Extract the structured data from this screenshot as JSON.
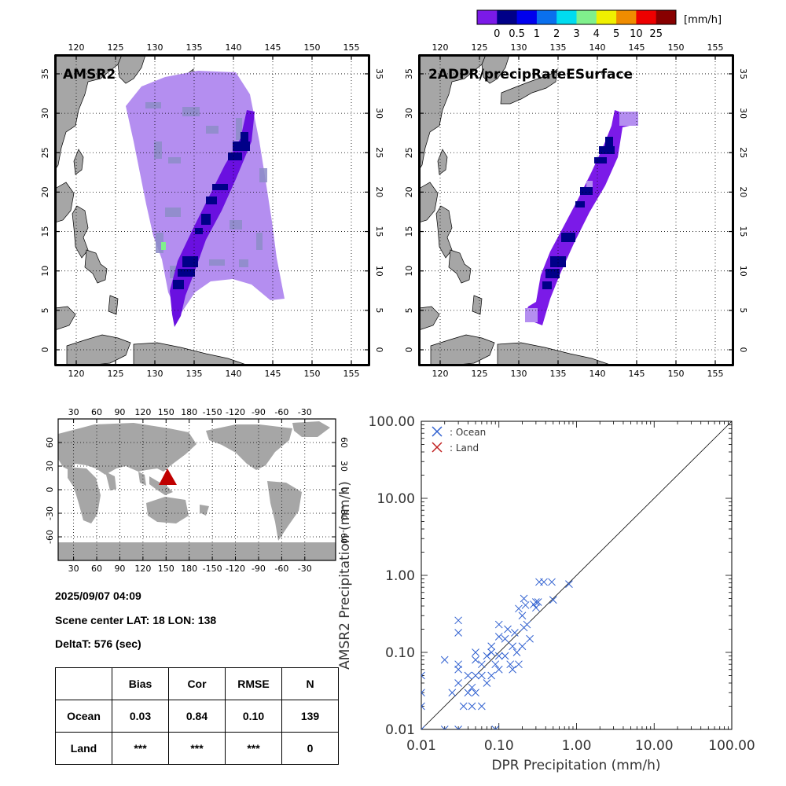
{
  "colorbar": {
    "unit": "[mm/h]",
    "tick_labels": [
      "0",
      "0.5",
      "1",
      "2",
      "3",
      "4",
      "5",
      "10",
      "25"
    ],
    "colors": [
      "#7b1ae8",
      "#000088",
      "#0000ee",
      "#0a70ee",
      "#00dcf0",
      "#80f08c",
      "#f0f000",
      "#f08c00",
      "#ee0000",
      "#880000"
    ]
  },
  "maps": [
    {
      "title": "AMSR2",
      "lon_labels": [
        "120",
        "125",
        "130",
        "135",
        "140",
        "145",
        "150",
        "155"
      ],
      "lat_labels": [
        "0",
        "5",
        "10",
        "15",
        "20",
        "25",
        "30",
        "35"
      ]
    },
    {
      "title": "2ADPR/precipRateESurface",
      "lon_labels": [
        "120",
        "125",
        "130",
        "135",
        "140",
        "145",
        "150",
        "155"
      ],
      "lat_labels": [
        "0",
        "5",
        "10",
        "15",
        "20",
        "25",
        "30",
        "35"
      ]
    }
  ],
  "globe": {
    "lon_labels": [
      "30",
      "60",
      "90",
      "120",
      "150",
      "180",
      "-150",
      "-120",
      "-90",
      "-60",
      "-30"
    ],
    "lat_labels": [
      "60",
      "30",
      "0",
      "-30",
      "-60"
    ],
    "marker_color": "#c00000"
  },
  "info": {
    "datetime": "2025/09/07 04:09",
    "scene_center": "Scene center LAT: 18   LON: 138",
    "delta_t": "DeltaT:  576 (sec)"
  },
  "stats_table": {
    "headers": [
      "",
      "Bias",
      "Cor",
      "RMSE",
      "N"
    ],
    "rows": [
      [
        "Ocean",
        "0.03",
        "0.84",
        "0.10",
        "139"
      ],
      [
        "Land",
        "***",
        "***",
        "***",
        "0"
      ]
    ]
  },
  "chart_data": {
    "type": "scatter",
    "xlabel": "DPR Precipitation (mm/h)",
    "ylabel": "AMSR2 Precipitation (mm/h)",
    "xscale": "log",
    "yscale": "log",
    "xlim": [
      0.01,
      100
    ],
    "ylim": [
      0.01,
      100
    ],
    "x_tick_labels": [
      "0.01",
      "0.10",
      "1.00",
      "10.00",
      "100.00"
    ],
    "y_tick_labels": [
      "0.01",
      "0.10",
      "1.00",
      "10.00",
      "100.00"
    ],
    "legend": "top-left",
    "reference_line": "1:1",
    "series": [
      {
        "name": ": Ocean",
        "marker": "x",
        "color": "#3060d0",
        "points": [
          [
            0.01,
            0.01
          ],
          [
            0.01,
            0.02
          ],
          [
            0.01,
            0.03
          ],
          [
            0.01,
            0.05
          ],
          [
            0.02,
            0.01
          ],
          [
            0.02,
            0.08
          ],
          [
            0.025,
            0.03
          ],
          [
            0.03,
            0.01
          ],
          [
            0.03,
            0.04
          ],
          [
            0.03,
            0.06
          ],
          [
            0.03,
            0.07
          ],
          [
            0.03,
            0.18
          ],
          [
            0.03,
            0.26
          ],
          [
            0.035,
            0.02
          ],
          [
            0.04,
            0.03
          ],
          [
            0.04,
            0.05
          ],
          [
            0.045,
            0.02
          ],
          [
            0.045,
            0.035
          ],
          [
            0.05,
            0.03
          ],
          [
            0.05,
            0.05
          ],
          [
            0.05,
            0.08
          ],
          [
            0.05,
            0.1
          ],
          [
            0.06,
            0.02
          ],
          [
            0.06,
            0.05
          ],
          [
            0.06,
            0.07
          ],
          [
            0.07,
            0.04
          ],
          [
            0.07,
            0.09
          ],
          [
            0.08,
            0.05
          ],
          [
            0.08,
            0.1
          ],
          [
            0.08,
            0.12
          ],
          [
            0.09,
            0.01
          ],
          [
            0.09,
            0.07
          ],
          [
            0.1,
            0.06
          ],
          [
            0.1,
            0.09
          ],
          [
            0.1,
            0.16
          ],
          [
            0.1,
            0.23
          ],
          [
            0.12,
            0.09
          ],
          [
            0.12,
            0.15
          ],
          [
            0.13,
            0.2
          ],
          [
            0.14,
            0.07
          ],
          [
            0.15,
            0.06
          ],
          [
            0.15,
            0.12
          ],
          [
            0.16,
            0.18
          ],
          [
            0.17,
            0.1
          ],
          [
            0.18,
            0.07
          ],
          [
            0.18,
            0.37
          ],
          [
            0.2,
            0.12
          ],
          [
            0.2,
            0.3
          ],
          [
            0.21,
            0.21
          ],
          [
            0.21,
            0.5
          ],
          [
            0.22,
            0.41
          ],
          [
            0.23,
            0.23
          ],
          [
            0.25,
            0.15
          ],
          [
            0.28,
            0.42
          ],
          [
            0.3,
            0.38
          ],
          [
            0.3,
            0.45
          ],
          [
            0.32,
            0.45
          ],
          [
            0.33,
            0.82
          ],
          [
            0.38,
            0.82
          ],
          [
            0.48,
            0.82
          ],
          [
            0.5,
            0.48
          ],
          [
            0.8,
            0.77
          ]
        ]
      },
      {
        "name": ": Land",
        "marker": "x",
        "color": "#c02020",
        "points": []
      }
    ]
  }
}
